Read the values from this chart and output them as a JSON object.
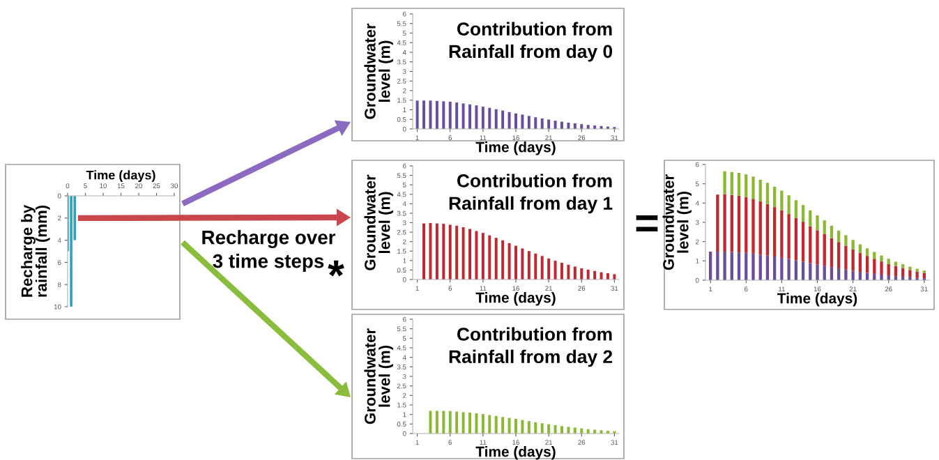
{
  "chart_data": [
    {
      "type": "bar",
      "xlabel": "Time (days)",
      "ylabel": "Recharge by\nrainfall (mm)",
      "x": [
        0,
        1,
        2
      ],
      "values": [
        5,
        10,
        4
      ],
      "color": "#2e9fc4",
      "xlim": [
        0,
        30
      ],
      "xticks": [
        0,
        5,
        10,
        15,
        20,
        25,
        30
      ],
      "ylim": [
        10,
        0
      ],
      "yticks": [
        0,
        2,
        4,
        6,
        8,
        10
      ],
      "annotations": [
        "Recharge over\n3 time steps"
      ]
    },
    {
      "type": "bar",
      "title": "Contribution from\nRainfall from day 0",
      "xlabel": "Time (days)",
      "ylabel": "Groundwater\nlevel (m)",
      "categories": [
        "1",
        null,
        null,
        null,
        null,
        "6",
        null,
        null,
        null,
        null,
        "11",
        null,
        null,
        null,
        null,
        "16",
        null,
        null,
        null,
        null,
        "21",
        null,
        null,
        null,
        null,
        "26",
        null,
        null,
        null,
        null,
        "31"
      ],
      "series": [
        {
          "color": "#6a4c9c",
          "values": [
            1.48,
            1.48,
            1.48,
            1.46,
            1.44,
            1.42,
            1.38,
            1.33,
            1.28,
            1.23,
            1.16,
            1.1,
            1.03,
            0.96,
            0.88,
            0.81,
            0.75,
            0.68,
            0.61,
            0.55,
            0.49,
            0.43,
            0.38,
            0.33,
            0.29,
            0.25,
            0.21,
            0.18,
            0.15,
            0.12,
            0.1
          ]
        }
      ],
      "ylim": [
        0,
        6
      ],
      "yticks": [
        0,
        0.5,
        1,
        1.5,
        2,
        2.5,
        3,
        3.5,
        4,
        4.5,
        5,
        5.5,
        6
      ]
    },
    {
      "type": "bar",
      "title": "Contribution from\nRainfall from day 1",
      "xlabel": "Time (days)",
      "ylabel": "Groundwater\nlevel (m)",
      "categories": [
        "1",
        null,
        null,
        null,
        null,
        "6",
        null,
        null,
        null,
        null,
        "11",
        null,
        null,
        null,
        null,
        "16",
        null,
        null,
        null,
        null,
        "21",
        null,
        null,
        null,
        null,
        "26",
        null,
        null,
        null,
        null,
        "31"
      ],
      "series": [
        {
          "color": "#c0282d",
          "values": [
            null,
            2.96,
            2.98,
            2.96,
            2.94,
            2.89,
            2.84,
            2.76,
            2.67,
            2.56,
            2.46,
            2.33,
            2.2,
            2.07,
            1.92,
            1.78,
            1.64,
            1.5,
            1.37,
            1.24,
            1.11,
            0.99,
            0.88,
            0.78,
            0.68,
            0.59,
            0.52,
            0.45,
            0.38,
            0.33,
            0.28
          ]
        }
      ],
      "ylim": [
        0,
        6
      ],
      "yticks": [
        0,
        0.5,
        1,
        1.5,
        2,
        2.5,
        3,
        3.5,
        4,
        4.5,
        5,
        5.5,
        6
      ],
      "annotations": [
        "*"
      ]
    },
    {
      "type": "bar",
      "title": "Contribution from\nRainfall from day 2",
      "xlabel": "Time (days)",
      "ylabel": "Groundwater\nlevel (m)",
      "categories": [
        "1",
        null,
        null,
        null,
        null,
        "6",
        null,
        null,
        null,
        null,
        "11",
        null,
        null,
        null,
        null,
        "16",
        null,
        null,
        null,
        null,
        "21",
        null,
        null,
        null,
        null,
        "26",
        null,
        null,
        null,
        null,
        "31"
      ],
      "series": [
        {
          "color": "#8bb833",
          "values": [
            null,
            null,
            1.19,
            1.19,
            1.19,
            1.18,
            1.15,
            1.12,
            1.1,
            1.06,
            1.02,
            0.97,
            0.92,
            0.87,
            0.82,
            0.77,
            0.71,
            0.65,
            0.59,
            0.54,
            0.49,
            0.44,
            0.39,
            0.35,
            0.31,
            0.27,
            0.23,
            0.2,
            0.17,
            0.14,
            0.12
          ]
        }
      ],
      "ylim": [
        0,
        6
      ],
      "yticks": [
        0,
        0.5,
        1,
        1.5,
        2,
        2.5,
        3,
        3.5,
        4,
        4.5,
        5,
        5.5,
        6
      ]
    },
    {
      "type": "bar",
      "stacked": true,
      "xlabel": "Time (days)",
      "ylabel": "Groundwater\nlevel (m)",
      "categories": [
        "1",
        null,
        null,
        null,
        null,
        "6",
        null,
        null,
        null,
        null,
        "11",
        null,
        null,
        null,
        null,
        "16",
        null,
        null,
        null,
        null,
        "21",
        null,
        null,
        null,
        null,
        "26",
        null,
        null,
        null,
        null,
        "31"
      ],
      "series": [
        {
          "color": "#6a4c9c",
          "values": [
            1.48,
            1.48,
            1.48,
            1.46,
            1.44,
            1.42,
            1.38,
            1.33,
            1.28,
            1.23,
            1.16,
            1.1,
            1.03,
            0.96,
            0.88,
            0.81,
            0.75,
            0.68,
            0.61,
            0.55,
            0.49,
            0.43,
            0.38,
            0.33,
            0.29,
            0.25,
            0.21,
            0.18,
            0.15,
            0.12,
            0.1
          ]
        },
        {
          "color": "#c0282d",
          "values": [
            null,
            2.96,
            2.98,
            2.96,
            2.94,
            2.89,
            2.84,
            2.76,
            2.67,
            2.56,
            2.46,
            2.33,
            2.2,
            2.07,
            1.92,
            1.78,
            1.64,
            1.5,
            1.37,
            1.24,
            1.11,
            0.99,
            0.88,
            0.78,
            0.68,
            0.59,
            0.52,
            0.45,
            0.38,
            0.33,
            0.28
          ]
        },
        {
          "color": "#8bb833",
          "values": [
            null,
            null,
            1.19,
            1.19,
            1.19,
            1.18,
            1.15,
            1.12,
            1.1,
            1.06,
            1.02,
            0.97,
            0.92,
            0.87,
            0.82,
            0.77,
            0.71,
            0.65,
            0.59,
            0.54,
            0.49,
            0.44,
            0.39,
            0.35,
            0.31,
            0.27,
            0.23,
            0.2,
            0.17,
            0.14,
            0.12
          ]
        }
      ],
      "ylim": [
        0,
        6
      ],
      "yticks": [
        0,
        1,
        2,
        3,
        4,
        5,
        6
      ],
      "annotations": [
        "="
      ]
    }
  ]
}
